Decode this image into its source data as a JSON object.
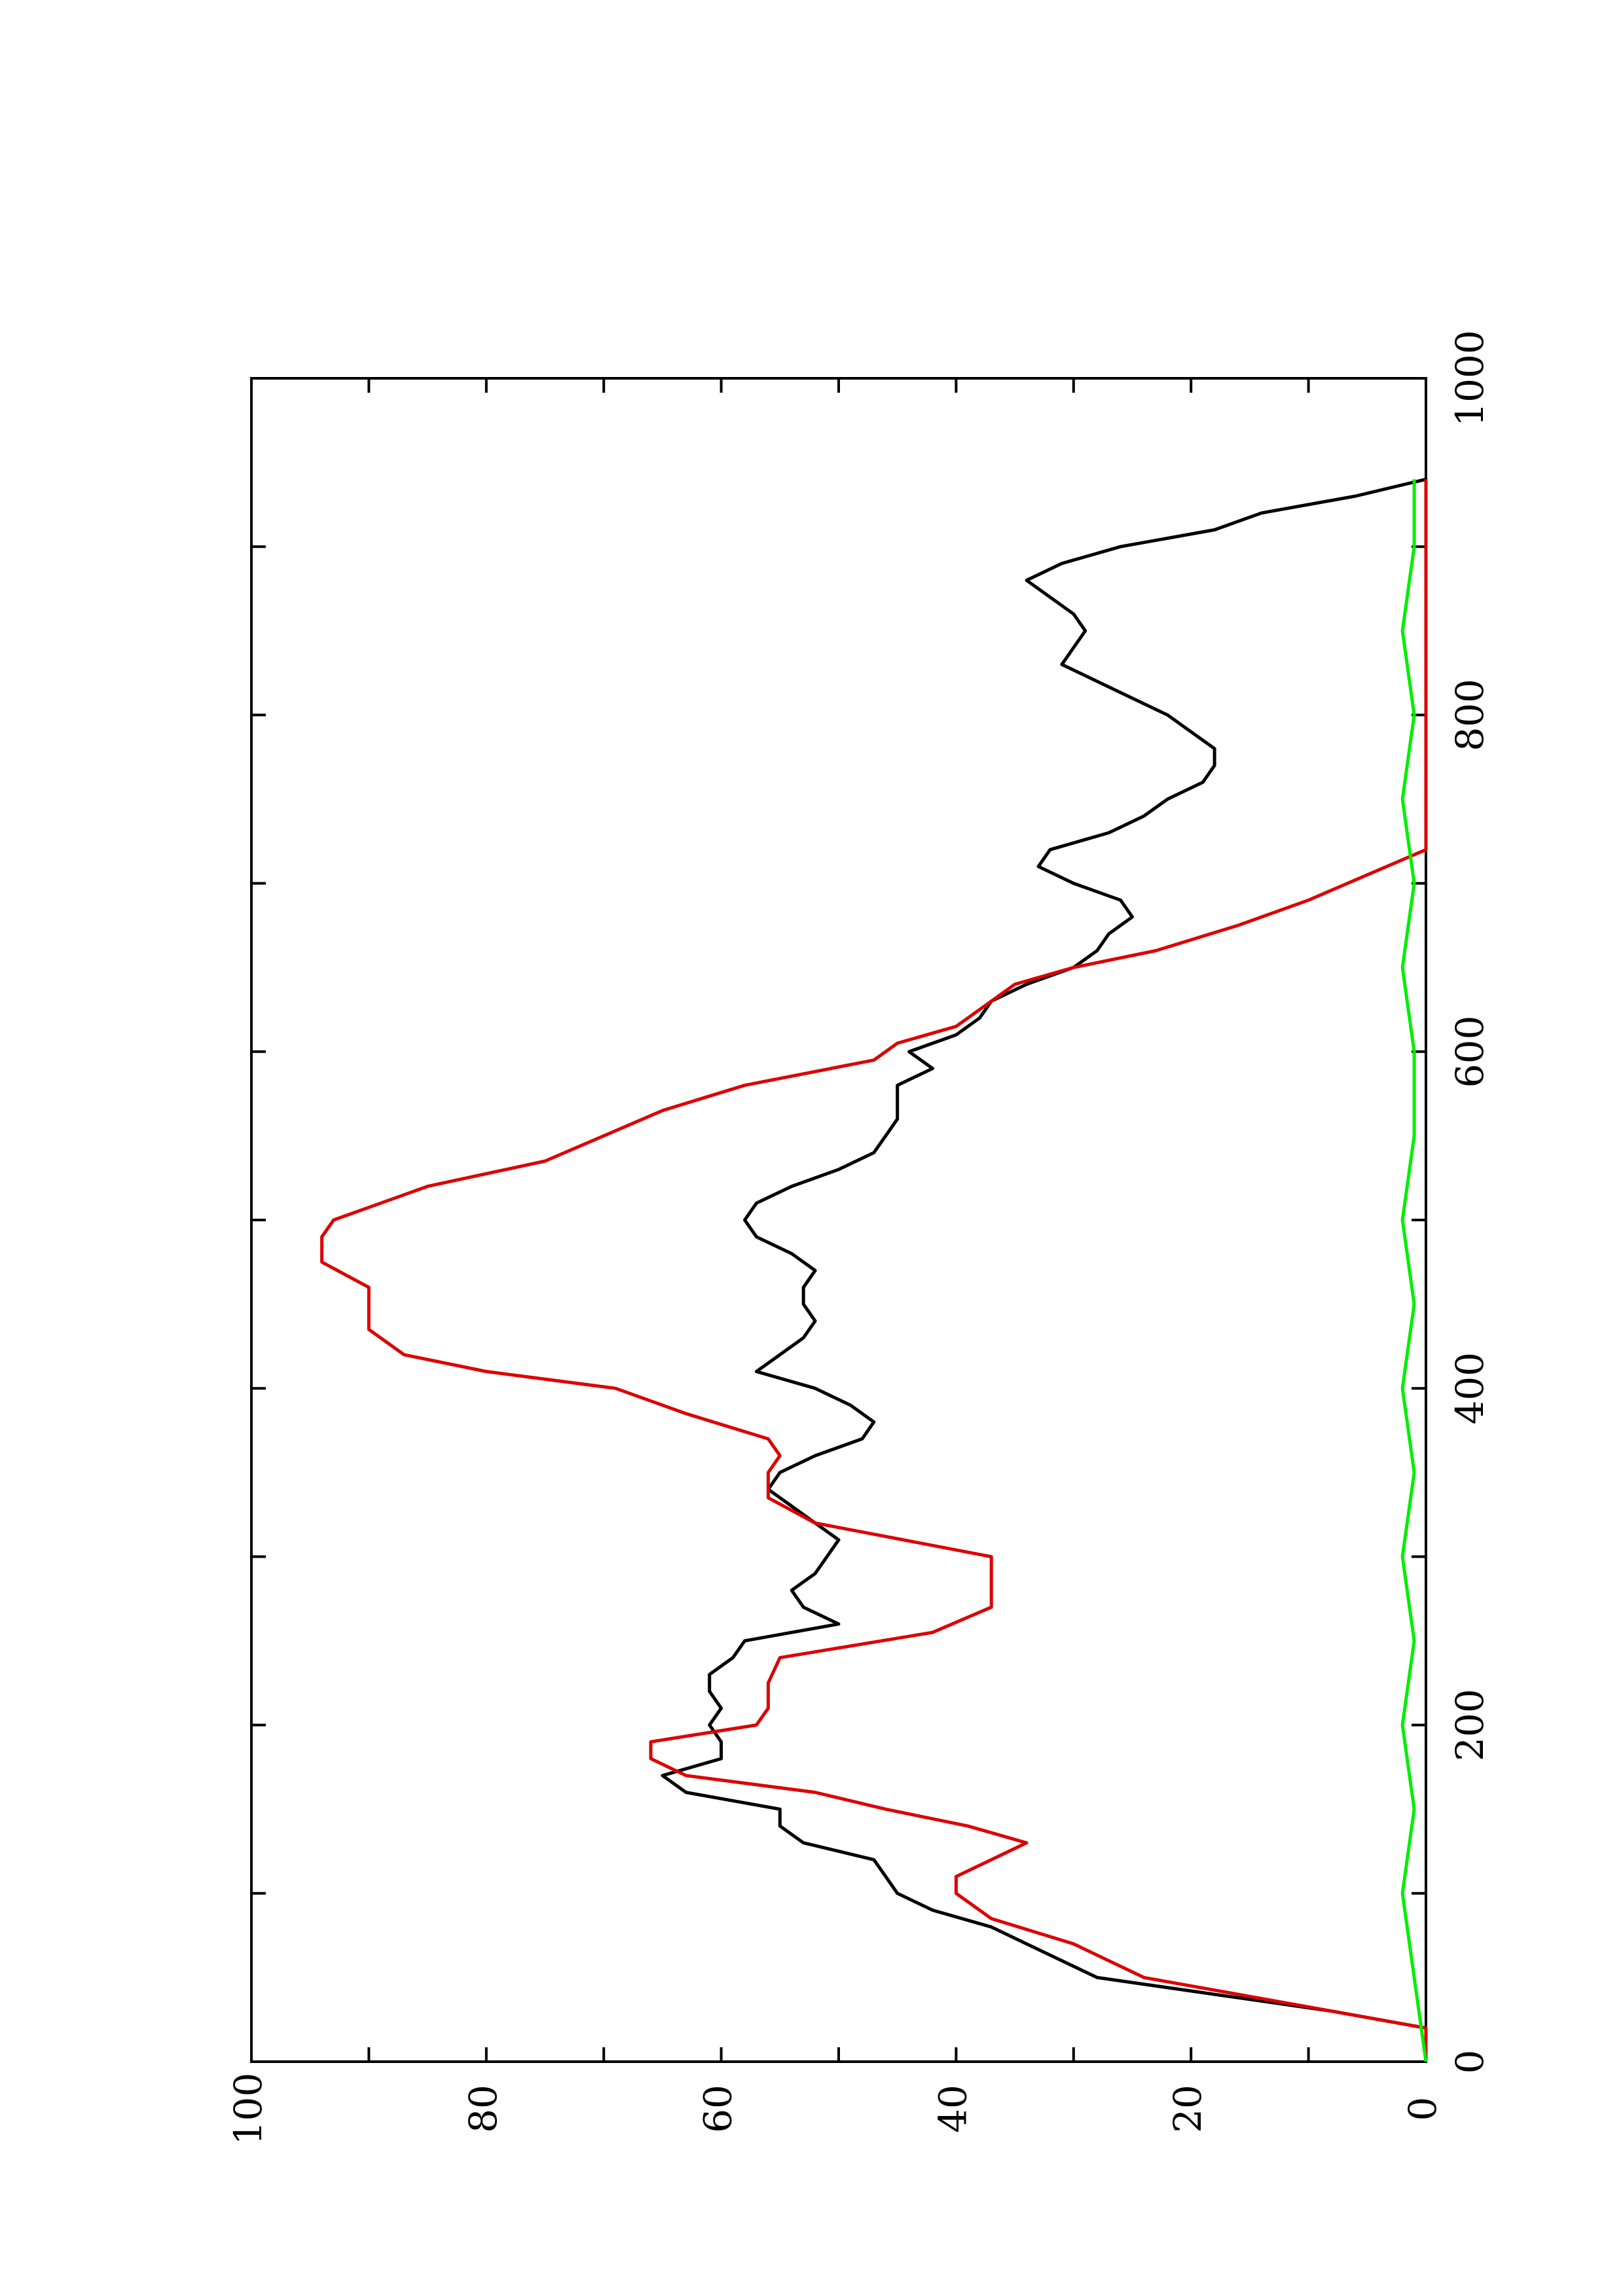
{
  "chart_data": {
    "type": "line",
    "title": "",
    "xlabel": "",
    "ylabel": "",
    "xlim": [
      0,
      1000
    ],
    "ylim": [
      0,
      100
    ],
    "x_ticks": [
      0,
      200,
      400,
      600,
      800,
      1000
    ],
    "x_tick_labels": [
      "0",
      "200",
      "400",
      "600",
      "800",
      "1000"
    ],
    "y_ticks": [
      0,
      20,
      40,
      60,
      80,
      100
    ],
    "y_tick_labels": [
      "0",
      "20",
      "40",
      "60",
      "80",
      "100"
    ],
    "grid": false,
    "legend": "none",
    "orientation": "rotated-90-counterclockwise",
    "series": [
      {
        "color": "#000000",
        "x": [
          0,
          20,
          30,
          40,
          50,
          60,
          70,
          80,
          90,
          100,
          110,
          120,
          130,
          140,
          150,
          160,
          170,
          180,
          190,
          200,
          210,
          220,
          230,
          240,
          250,
          260,
          270,
          280,
          290,
          300,
          310,
          320,
          330,
          340,
          350,
          360,
          370,
          380,
          390,
          400,
          410,
          420,
          430,
          440,
          450,
          460,
          470,
          480,
          490,
          500,
          510,
          520,
          530,
          540,
          550,
          560,
          570,
          580,
          590,
          600,
          610,
          620,
          630,
          640,
          650,
          660,
          670,
          680,
          690,
          700,
          710,
          720,
          730,
          740,
          750,
          760,
          770,
          780,
          790,
          800,
          810,
          820,
          830,
          840,
          850,
          860,
          870,
          880,
          890,
          900,
          910,
          920,
          930,
          940
        ],
        "y": [
          0,
          0,
          8,
          18,
          28,
          31,
          34,
          37,
          42,
          45,
          46,
          47,
          53,
          55,
          55,
          63,
          65,
          60,
          60,
          61,
          60,
          61,
          61,
          59,
          58,
          50,
          53,
          54,
          52,
          51,
          50,
          52,
          54,
          56,
          55,
          52,
          48,
          47,
          49,
          52,
          57,
          55,
          53,
          52,
          53,
          53,
          52,
          54,
          57,
          58,
          57,
          54,
          50,
          47,
          46,
          45,
          45,
          45,
          42,
          44,
          40,
          38,
          37,
          34,
          30,
          28,
          27,
          25,
          26,
          30,
          33,
          32,
          27,
          24,
          22,
          19,
          18,
          18,
          20,
          22,
          25,
          28,
          31,
          30,
          29,
          30,
          32,
          34,
          31,
          26,
          18,
          14,
          6,
          0
        ]
      },
      {
        "color": "#dd0000",
        "x": [
          0,
          20,
          30,
          40,
          50,
          60,
          70,
          85,
          100,
          110,
          120,
          130,
          140,
          150,
          160,
          170,
          180,
          190,
          200,
          210,
          225,
          240,
          255,
          270,
          280,
          290,
          300,
          320,
          335,
          350,
          360,
          370,
          385,
          400,
          410,
          420,
          435,
          450,
          460,
          475,
          490,
          500,
          510,
          520,
          535,
          550,
          565,
          580,
          595,
          605,
          615,
          625,
          640,
          650,
          660,
          675,
          690,
          705,
          720,
          740,
          755,
          770,
          785,
          800,
          815,
          830,
          845,
          855,
          860,
          875,
          890,
          905,
          920,
          935,
          940
        ],
        "y": [
          0,
          0,
          8,
          16,
          24,
          27,
          30,
          37,
          40,
          40,
          37,
          34,
          39,
          46,
          52,
          63,
          66,
          66,
          57,
          56,
          56,
          55,
          42,
          37,
          37,
          37,
          37,
          52,
          56,
          56,
          55,
          56,
          63,
          69,
          80,
          87,
          90,
          90,
          90,
          94,
          94,
          93,
          89,
          85,
          75,
          70,
          65,
          58,
          47,
          45,
          40,
          38,
          35,
          30,
          23,
          16,
          10,
          5,
          0,
          0,
          0,
          0,
          0,
          0,
          0,
          0,
          0,
          0,
          0,
          0,
          0,
          0,
          0,
          0,
          0
        ]
      },
      {
        "color": "#00ee00",
        "x": [
          0,
          50,
          100,
          150,
          200,
          250,
          300,
          350,
          400,
          450,
          500,
          550,
          600,
          650,
          700,
          750,
          800,
          850,
          900,
          940
        ],
        "y": [
          0,
          1,
          2,
          1,
          2,
          1,
          2,
          1,
          2,
          1,
          2,
          1,
          1,
          2,
          1,
          2,
          1,
          2,
          1,
          1
        ]
      }
    ]
  }
}
